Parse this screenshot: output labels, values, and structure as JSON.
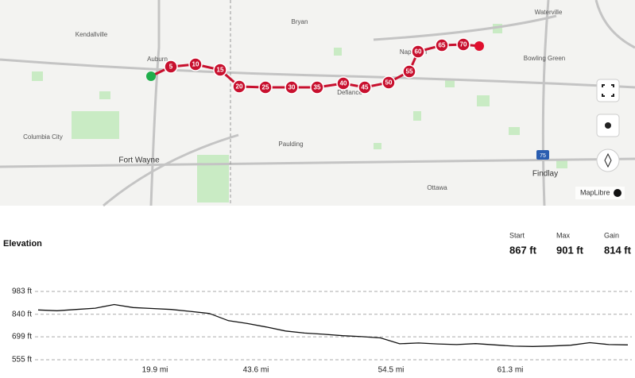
{
  "map": {
    "places": [
      "Kendallville",
      "Bryan",
      "Waterville",
      "Auburn",
      "Bowling Green",
      "Columbia City",
      "Fort Wayne",
      "Paulding",
      "Defiance",
      "Napoleon",
      "Findlay",
      "Ottawa"
    ],
    "highway": "75",
    "attribution": "MapLibre",
    "route_markers": [
      5,
      10,
      15,
      20,
      25,
      30,
      35,
      40,
      45,
      50,
      55,
      60,
      65,
      70
    ]
  },
  "elevation": {
    "title": "Elevation",
    "stats": [
      {
        "label": "Start",
        "value": "867 ft"
      },
      {
        "label": "Max",
        "value": "901 ft"
      },
      {
        "label": "Gain",
        "value": "814 ft"
      }
    ],
    "chart_data": {
      "type": "line",
      "values": [
        867,
        862,
        870,
        878,
        901,
        882,
        876,
        870,
        858,
        845,
        800,
        782,
        760,
        735,
        722,
        715,
        706,
        700,
        692,
        655,
        660,
        654,
        650,
        656,
        648,
        640,
        638,
        641,
        646,
        662,
        650,
        648
      ],
      "color": "#111111",
      "ylim": [
        555,
        983
      ],
      "yticks": [
        {
          "value": 555,
          "label": "555 ft"
        },
        {
          "value": 699,
          "label": "699 ft"
        },
        {
          "value": 840,
          "label": "840 ft"
        },
        {
          "value": 983,
          "label": "983 ft"
        }
      ],
      "x_labels": [
        "19.9 mi",
        "43.6 mi",
        "54.5 mi",
        "61.3 mi"
      ],
      "grid": true
    }
  }
}
